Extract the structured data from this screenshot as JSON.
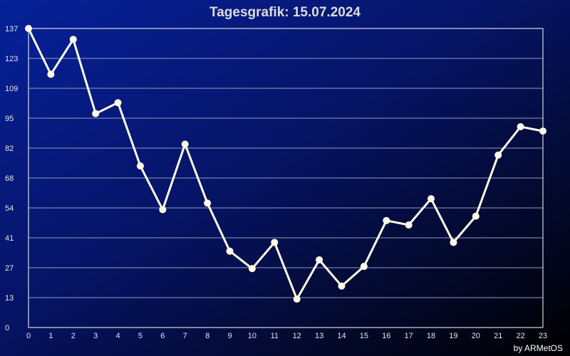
{
  "chart_data": {
    "type": "line",
    "title": "Tagesgrafik: 15.07.2024",
    "xlabel": "",
    "ylabel": "",
    "x": [
      0,
      1,
      2,
      3,
      4,
      5,
      6,
      7,
      8,
      9,
      10,
      11,
      12,
      13,
      14,
      15,
      16,
      17,
      18,
      19,
      20,
      21,
      22,
      23
    ],
    "x_tick_labels": [
      "0",
      "1",
      "2",
      "3",
      "4",
      "5",
      "6",
      "7",
      "8",
      "9",
      "10",
      "11",
      "12",
      "13",
      "14",
      "15",
      "16",
      "17",
      "18",
      "19",
      "20",
      "21",
      "22",
      "23"
    ],
    "y_tick_labels": [
      "0",
      "13",
      "27",
      "41",
      "54",
      "68",
      "82",
      "95",
      "109",
      "123",
      "137"
    ],
    "xlim": [
      0,
      23
    ],
    "ylim": [
      0,
      137
    ],
    "grid": true,
    "series": [
      {
        "values": [
          137,
          116,
          132,
          98,
          103,
          74,
          54,
          84,
          57,
          35,
          27,
          39,
          13,
          31,
          19,
          28,
          49,
          47,
          59,
          39,
          51,
          79,
          92,
          90
        ]
      }
    ]
  },
  "credit": "by ARMetOS",
  "colors": {
    "line": "#fffbe6",
    "grid": "#8f9bc4",
    "axis": "#ffffff",
    "background_start": "#06219a",
    "background_end": "#000000"
  }
}
